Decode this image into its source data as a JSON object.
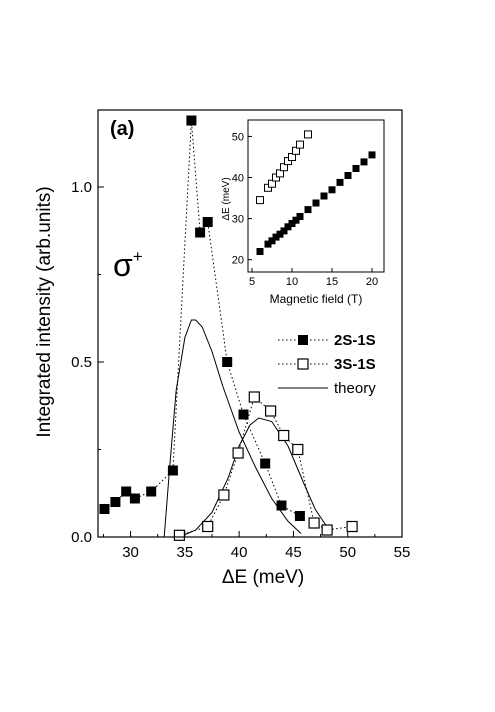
{
  "chart_data": [
    {
      "type": "scatter",
      "panel_label": "(a)",
      "annotation": "σ⁺",
      "annotation_base": "σ",
      "annotation_sup": "+",
      "xlabel": "ΔE (meV)",
      "ylabel": "Integrated intensity (arb.units)",
      "xlim": [
        27,
        55
      ],
      "ylim": [
        0,
        1.22
      ],
      "xticks": [
        {
          "value": 30,
          "label": "30"
        },
        {
          "value": 35,
          "label": "35"
        },
        {
          "value": 40,
          "label": "40"
        },
        {
          "value": 45,
          "label": "45"
        },
        {
          "value": 50,
          "label": "50"
        },
        {
          "value": 55,
          "label": "55"
        }
      ],
      "yticks": [
        {
          "value": 0.0,
          "label": "0.0"
        },
        {
          "value": 0.5,
          "label": "0.5"
        },
        {
          "value": 1.0,
          "label": "1.0"
        }
      ],
      "legend_position": "right",
      "series": [
        {
          "name": "2S-1S",
          "marker": "filled-square",
          "line": "dotted",
          "x": [
            27.6,
            28.6,
            29.6,
            30.4,
            31.9,
            33.9,
            35.6,
            36.4,
            37.1,
            38.9,
            40.4,
            42.4,
            43.9,
            45.6
          ],
          "y": [
            0.08,
            0.1,
            0.13,
            0.11,
            0.13,
            0.19,
            1.19,
            0.87,
            0.9,
            0.5,
            0.35,
            0.21,
            0.09,
            0.06
          ]
        },
        {
          "name": "3S-1S",
          "marker": "open-square",
          "line": "dotted",
          "x": [
            34.5,
            37.1,
            38.6,
            39.9,
            41.4,
            42.9,
            44.1,
            45.4,
            46.9,
            48.1,
            50.4
          ],
          "y": [
            0.005,
            0.03,
            0.12,
            0.24,
            0.4,
            0.36,
            0.29,
            0.25,
            0.04,
            0.02,
            0.03
          ]
        },
        {
          "name": "theory",
          "marker": "none",
          "line": "solid",
          "x": [
            33.1,
            33.6,
            34.2,
            35.0,
            35.6,
            36.0,
            36.6,
            37.5,
            38.5,
            40.0,
            41.5,
            43.0,
            44.5,
            45.7
          ],
          "y": [
            0.0,
            0.2,
            0.42,
            0.57,
            0.62,
            0.62,
            0.6,
            0.53,
            0.43,
            0.3,
            0.2,
            0.11,
            0.045,
            0.01
          ]
        },
        {
          "name": "theory",
          "marker": "none",
          "line": "solid",
          "x": [
            34.5,
            36.0,
            37.5,
            39.0,
            40.0,
            41.0,
            41.8,
            43.0,
            44.5,
            46.0,
            47.0,
            48.5
          ],
          "y": [
            0.0,
            0.02,
            0.07,
            0.17,
            0.26,
            0.32,
            0.34,
            0.33,
            0.26,
            0.15,
            0.08,
            0.01
          ]
        }
      ]
    },
    {
      "type": "scatter",
      "inset": true,
      "xlabel": "Magnetic field (T)",
      "ylabel": "ΔE (meV)",
      "xlim": [
        4.5,
        21.5
      ],
      "ylim": [
        17,
        54
      ],
      "xticks": [
        {
          "value": 5,
          "label": "5"
        },
        {
          "value": 10,
          "label": "10"
        },
        {
          "value": 15,
          "label": "15"
        },
        {
          "value": 20,
          "label": "20"
        }
      ],
      "yticks": [
        {
          "value": 20,
          "label": "20"
        },
        {
          "value": 30,
          "label": "30"
        },
        {
          "value": 40,
          "label": "40"
        },
        {
          "value": 50,
          "label": "50"
        }
      ],
      "series": [
        {
          "marker": "open-square",
          "x": [
            6.0,
            7.0,
            7.5,
            8.0,
            8.5,
            9.0,
            9.5,
            10.0,
            10.5,
            11.0,
            12.0
          ],
          "y": [
            34.5,
            37.5,
            38.5,
            40.0,
            41.0,
            42.5,
            44.0,
            45.0,
            46.5,
            48.0,
            50.5
          ]
        },
        {
          "marker": "filled-square",
          "x": [
            6.0,
            7.0,
            7.5,
            8.0,
            8.5,
            9.0,
            9.5,
            10.0,
            10.5,
            11.0,
            12.0,
            13.0,
            14.0,
            15.0,
            16.0,
            17.0,
            18.0,
            19.0,
            20.0
          ],
          "y": [
            22.0,
            23.8,
            24.6,
            25.5,
            26.2,
            27.0,
            28.0,
            28.8,
            29.6,
            30.5,
            32.2,
            33.8,
            35.5,
            37.0,
            38.8,
            40.5,
            42.2,
            43.8,
            45.5
          ]
        }
      ]
    }
  ]
}
